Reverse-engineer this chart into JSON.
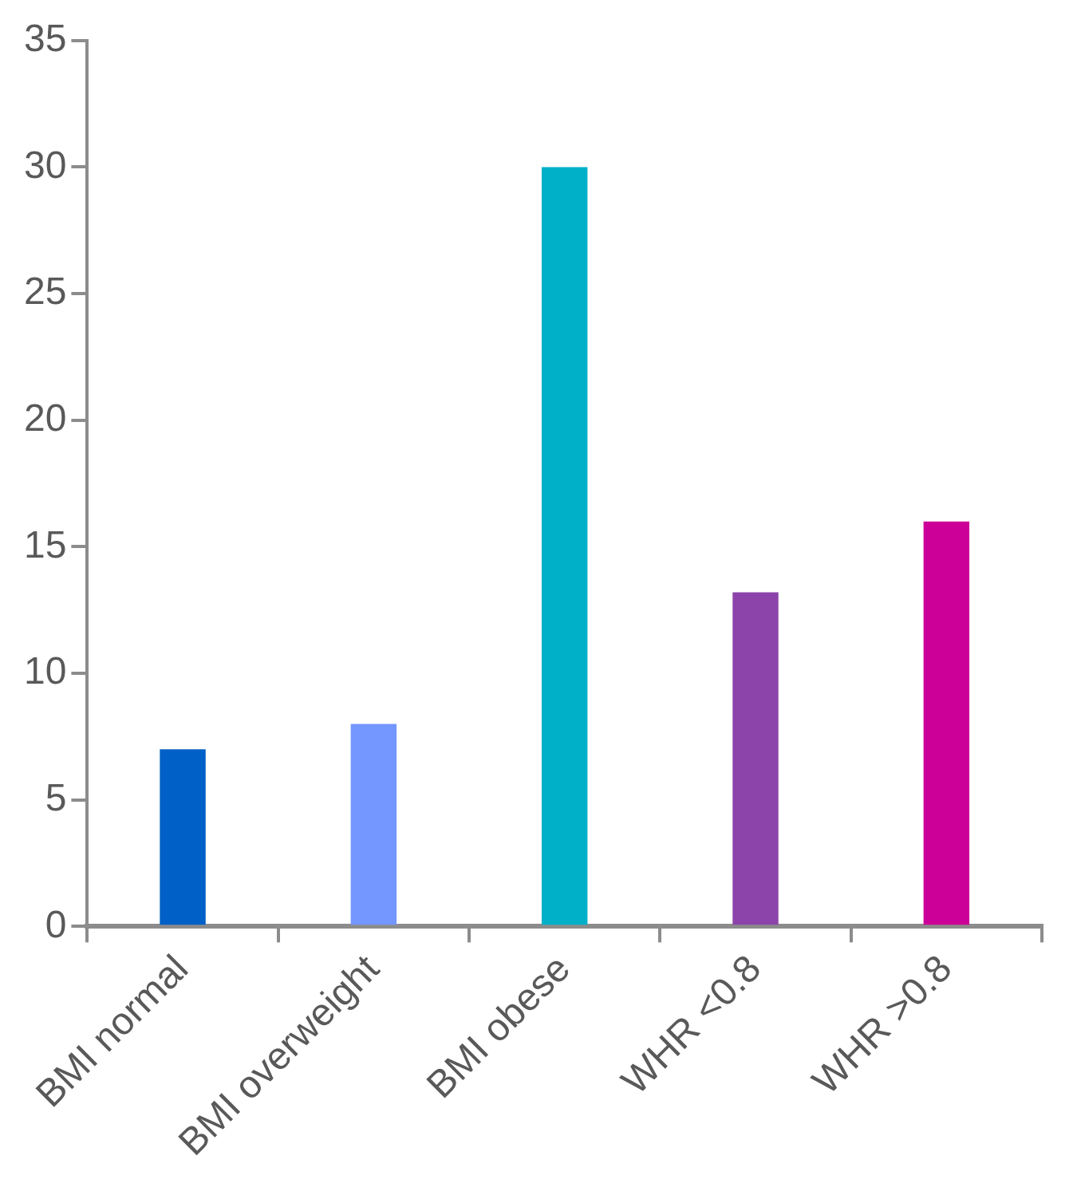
{
  "chart_data": {
    "type": "bar",
    "categories": [
      "BMI normal",
      "BMI overweight",
      "BMI obese",
      "WHR <0.8",
      "WHR >0.8"
    ],
    "values": [
      7,
      8,
      30,
      13.2,
      16
    ],
    "colors": [
      "#0060c8",
      "#7396ff",
      "#00b0c8",
      "#8c44aa",
      "#cc0099"
    ],
    "ylim": [
      0,
      35
    ],
    "yticks": [
      0,
      5,
      10,
      15,
      20,
      25,
      30,
      35
    ],
    "grid": false
  }
}
